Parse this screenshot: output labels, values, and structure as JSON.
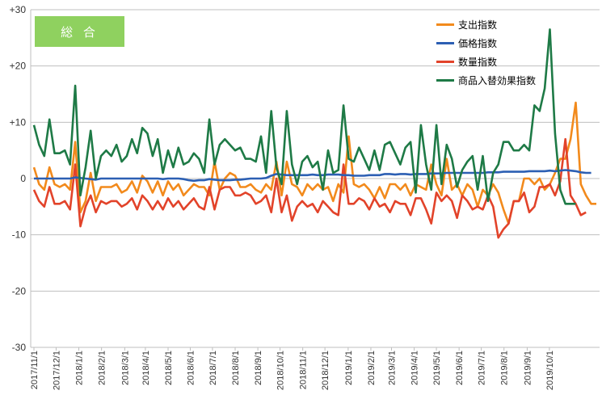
{
  "badge": "総 合",
  "chart_data": {
    "type": "line",
    "ylim": [
      -30,
      30
    ],
    "y_ticks": [
      "+30",
      "+20",
      "+10",
      "0",
      "-10",
      "-20",
      "-30"
    ],
    "y_tick_values": [
      30,
      20,
      10,
      0,
      -10,
      -20,
      -30
    ],
    "x_tick_labels": [
      "2017/11/1",
      "2017/12/1",
      "2018/1/1",
      "2018/2/1",
      "2018/3/1",
      "2018/4/1",
      "2018/5/1",
      "2018/6/1",
      "2018/7/1",
      "2018/8/1",
      "2018/9/1",
      "2018/10/1",
      "2018/11/1",
      "2018/12/1",
      "2019/1/1",
      "2019/2/1",
      "2019/3/1",
      "2019/4/1",
      "2019/5/1",
      "2019/6/1",
      "2019/7/1",
      "2019/8/1",
      "2019/9/1",
      "2019/10/1"
    ],
    "x_tick_weeks": [
      0,
      4.3,
      8.7,
      13.1,
      17.6,
      21.6,
      26,
      30.3,
      34.6,
      39,
      43.4,
      47.7,
      52.1,
      56.4,
      60.9,
      65.3,
      69.3,
      73.7,
      78,
      82.4,
      86.7,
      91.1,
      95.6,
      99.9
    ],
    "grid": "horizontal",
    "legend_position": "top-right",
    "series": [
      {
        "name": "支出指数",
        "color": "#f28a1c",
        "values": [
          2,
          -1,
          -2,
          2,
          -1,
          -1.5,
          -1,
          -2,
          6.5,
          -6,
          -4,
          1,
          -4,
          -1.5,
          -1.5,
          -1.5,
          -1,
          -2.5,
          -2,
          -0.5,
          -2.5,
          0.5,
          -0.5,
          -2.5,
          -0.5,
          -3,
          -0.5,
          -2,
          -1,
          -3,
          -2,
          -1,
          -1.5,
          -1.5,
          -3,
          3,
          -2,
          0,
          1,
          0.5,
          -1.5,
          -1.5,
          -1,
          -2,
          -2.5,
          -1,
          -2,
          3,
          -3,
          3,
          -1,
          -1.5,
          -3,
          -1,
          -2,
          -1,
          -2,
          -1.5,
          -4,
          -1,
          -2.5,
          7.5,
          -1,
          -1.5,
          -1,
          -2,
          -3.5,
          -1.5,
          -3.5,
          -1,
          -1,
          -2,
          -1,
          -3,
          -1,
          -1.5,
          -2,
          2.5,
          -1,
          -3,
          3.5,
          -2,
          -1,
          -3,
          -1,
          -2,
          -5,
          -2,
          -3,
          -1,
          -2.5,
          -5.5,
          -8,
          -4,
          -4,
          0,
          0,
          -1,
          0,
          -2,
          -1,
          1,
          3.5,
          3.5,
          7,
          13.5,
          -1,
          -3,
          -4.5,
          -4.5
        ]
      },
      {
        "name": "価格指数",
        "color": "#2c5fb3",
        "values": [
          0,
          0,
          0,
          0,
          0,
          0,
          0,
          0,
          0.2,
          0.1,
          0,
          -0.1,
          -0.2,
          0,
          0,
          0,
          0,
          0,
          0,
          0,
          0,
          0,
          0,
          0,
          0,
          -0.1,
          0,
          0,
          0,
          -0.1,
          -0.3,
          -0.4,
          -0.3,
          -0.3,
          -0.1,
          -0.2,
          -0.3,
          -0.3,
          -0.3,
          -0.2,
          -0.2,
          -0.1,
          0,
          0,
          0,
          0.1,
          0.5,
          0.8,
          0.7,
          0.6,
          0.6,
          0.6,
          0.6,
          0.6,
          0.7,
          0.6,
          0.6,
          0.7,
          0.7,
          0.7,
          0.6,
          0.6,
          0.5,
          0.5,
          0.5,
          0.6,
          0.6,
          0.6,
          0.8,
          0.8,
          0.7,
          0.8,
          0.8,
          0.7,
          0.8,
          0.8,
          0.8,
          0.9,
          0.9,
          0.9,
          1,
          1,
          1,
          1,
          1,
          1,
          1,
          1,
          1.1,
          1.1,
          1.1,
          1.2,
          1.2,
          1.2,
          1.2,
          1.2,
          1.3,
          1.3,
          1.3,
          1.3,
          1.4,
          1.3,
          1.4,
          1.5,
          1.4,
          1.3,
          1.1,
          1,
          1
        ]
      },
      {
        "name": "数量指数",
        "color": "#e2432a",
        "values": [
          -2,
          -4,
          -5,
          -1.5,
          -4.5,
          -4.5,
          -4,
          -5.5,
          2.5,
          -8.5,
          -5,
          -3,
          -6,
          -4,
          -4.5,
          -4,
          -4,
          -5,
          -4.5,
          -3.5,
          -5.5,
          -3,
          -4,
          -5.5,
          -4,
          -5.5,
          -3.5,
          -5,
          -4,
          -5.5,
          -4.5,
          -3.5,
          -5,
          -5.5,
          -1.5,
          -5.5,
          -2,
          -1.5,
          -1.5,
          -3,
          -3,
          -2.5,
          -3,
          -4.5,
          -4,
          -3,
          -6,
          0,
          -6,
          -3,
          -7.5,
          -5,
          -4,
          -5,
          -4.5,
          -6,
          -4,
          -5,
          -6,
          -6.5,
          2.5,
          -4.5,
          -4.5,
          -3.5,
          -4,
          -5.5,
          -3.5,
          -5,
          -4.5,
          -6,
          -4,
          -4.5,
          -4.5,
          -6.5,
          -3.5,
          -3.5,
          -5.5,
          -8,
          -2.5,
          -4,
          -3,
          -4,
          -7,
          -3,
          -4,
          -5.5,
          -5,
          -5.5,
          -3,
          -5,
          -10.5,
          -9,
          -8,
          -4,
          -4,
          -2.5,
          -6,
          -5,
          -1.5,
          -1.5,
          -1,
          -3,
          -0.5,
          7,
          -3,
          -4.5,
          -6.5,
          -6
        ]
      },
      {
        "name": "商品入替効果指数",
        "color": "#1e7a46",
        "values": [
          9.5,
          6,
          4,
          10.5,
          4.5,
          4.5,
          5,
          2.5,
          16.5,
          -3,
          2,
          8.5,
          0,
          4,
          5,
          4,
          6,
          3,
          4,
          7,
          4.5,
          9,
          8,
          4,
          7,
          1,
          5,
          2,
          5.5,
          2.5,
          3,
          4.5,
          3.5,
          1,
          10.5,
          2.5,
          6,
          7,
          6,
          5,
          5.5,
          3.5,
          3.5,
          3,
          7.5,
          1,
          12,
          2,
          -1,
          12,
          2.5,
          -1,
          3,
          4,
          2,
          3,
          -2,
          5,
          1,
          1.5,
          13,
          3.5,
          3,
          5.5,
          3.5,
          1.5,
          5,
          1.5,
          6,
          6.5,
          4.5,
          2.5,
          5.5,
          6.5,
          -2.5,
          9.5,
          2.5,
          -2,
          9.5,
          -1,
          6,
          3.5,
          -1.5,
          1.5,
          3,
          4,
          -2,
          4,
          -4,
          1,
          2.5,
          6.5,
          6.5,
          5,
          5,
          6,
          5,
          13,
          12,
          16,
          26.5,
          8,
          -2,
          -4.5,
          -4.5,
          -4.5
        ]
      }
    ]
  }
}
